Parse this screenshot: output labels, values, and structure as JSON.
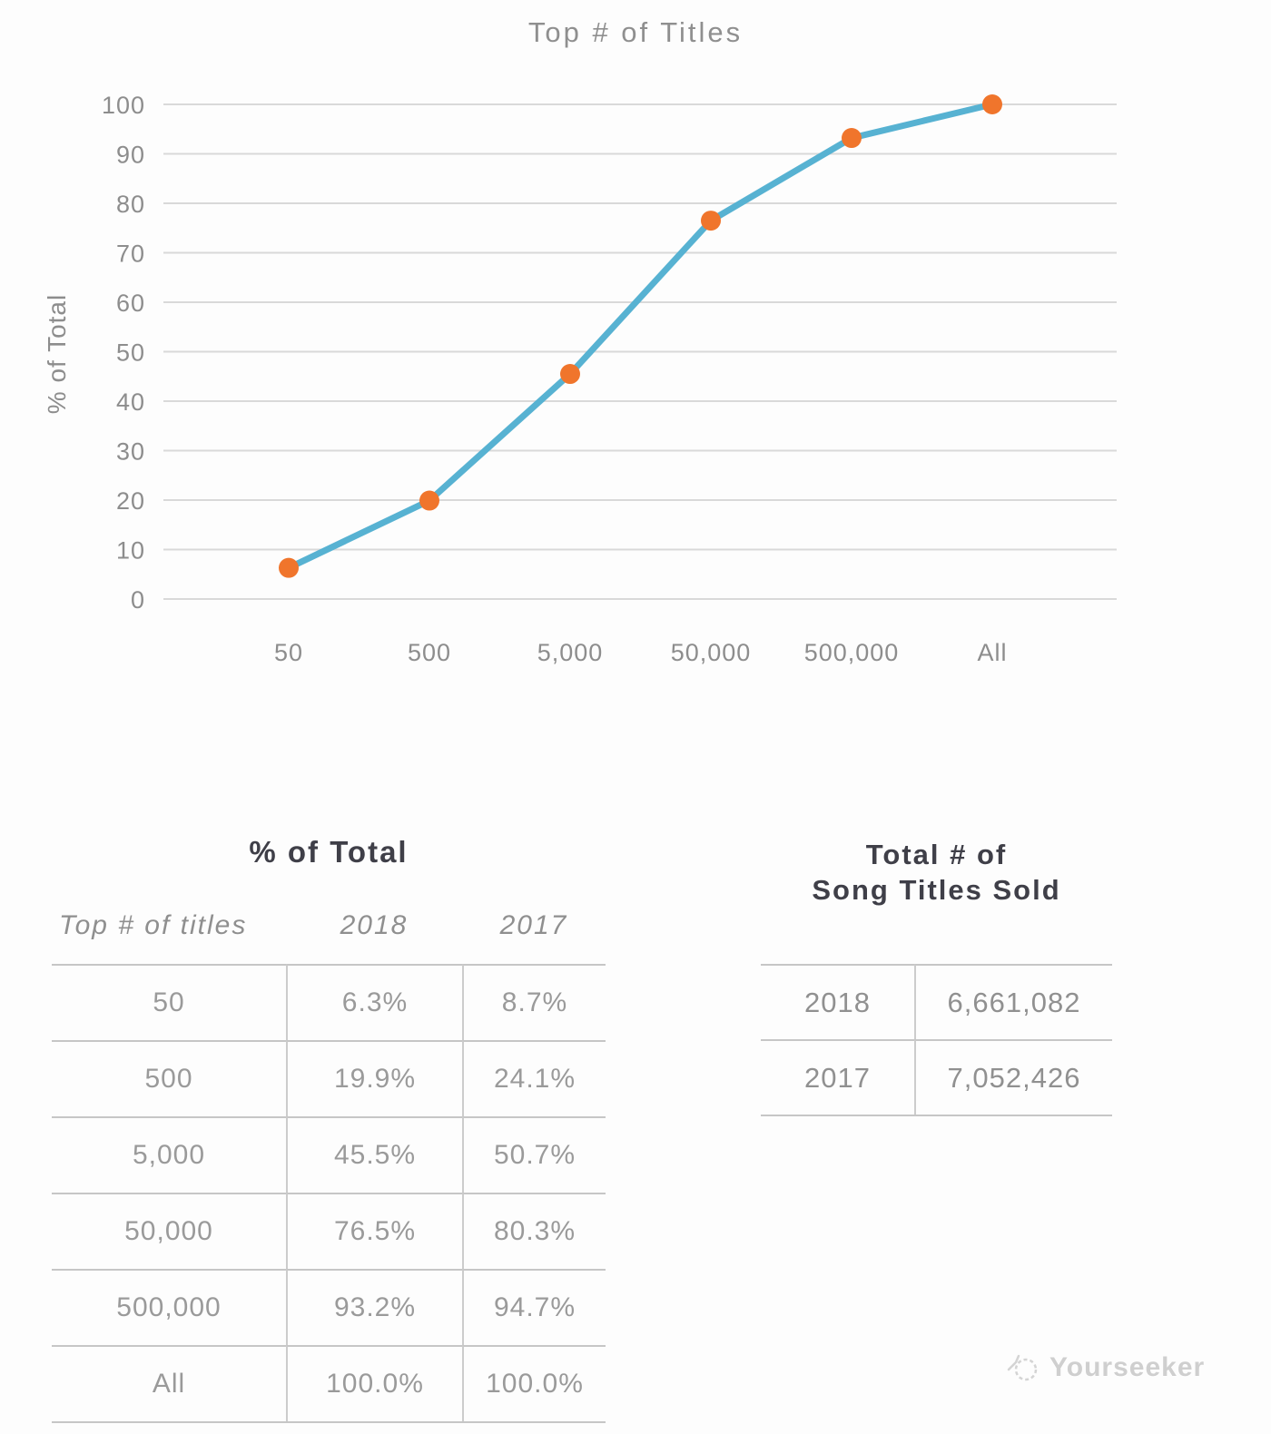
{
  "chart": {
    "title": "Top # of Titles"
  },
  "chart_data": {
    "type": "line",
    "title": "Top # of Titles",
    "xlabel": "",
    "ylabel": "% of Total",
    "categories": [
      "50",
      "500",
      "5,000",
      "50,000",
      "500,000",
      "All"
    ],
    "series": [
      {
        "name": "2018",
        "values": [
          6.3,
          19.9,
          45.5,
          76.5,
          93.2,
          100.0
        ]
      }
    ],
    "ylim": [
      0,
      100
    ],
    "yticks": [
      0,
      10,
      20,
      30,
      40,
      50,
      60,
      70,
      80,
      90,
      100
    ],
    "grid": true,
    "legend": "none",
    "style": {
      "line_color": "#57B2D2",
      "marker_color": "#F0752C",
      "grid_color": "#d9d9d9"
    }
  },
  "percent_table": {
    "title": "% of Total",
    "columns": [
      "Top # of titles",
      "2018",
      "2017"
    ],
    "rows": [
      [
        "50",
        "6.3%",
        "8.7%"
      ],
      [
        "500",
        "19.9%",
        "24.1%"
      ],
      [
        "5,000",
        "45.5%",
        "50.7%"
      ],
      [
        "50,000",
        "76.5%",
        "80.3%"
      ],
      [
        "500,000",
        "93.2%",
        "94.7%"
      ],
      [
        "All",
        "100.0%",
        "100.0%"
      ]
    ]
  },
  "totals_table": {
    "title_line1": "Total # of",
    "title_line2": "Song Titles Sold",
    "rows": [
      [
        "2018",
        "6,661,082"
      ],
      [
        "2017",
        "7,052,426"
      ]
    ]
  },
  "watermark": {
    "label": "Yourseeker"
  },
  "colors": {
    "accent_blue": "#57B2D2",
    "accent_orange": "#F0752C",
    "heading_dark": "#3f3f48",
    "text_gray": "#9a9a9a"
  }
}
